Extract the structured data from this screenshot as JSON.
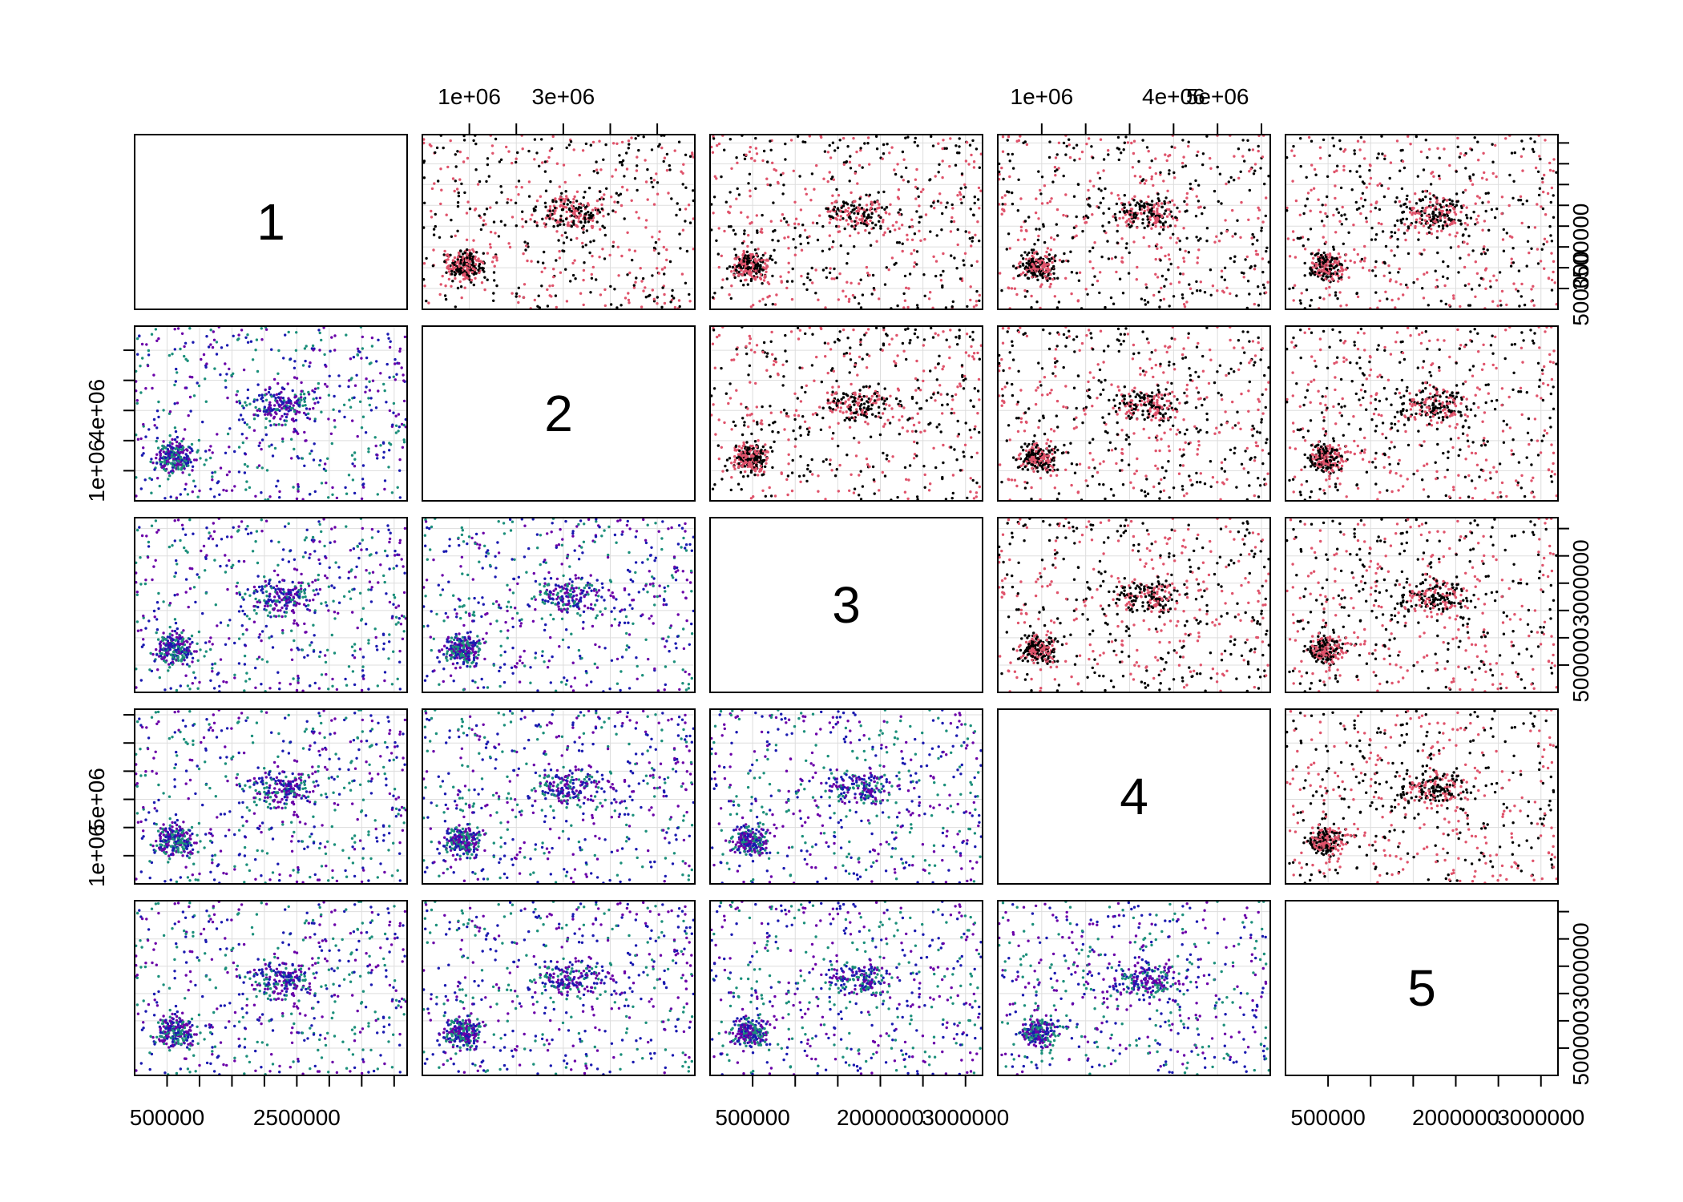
{
  "chart_data": {
    "type": "scatter",
    "subtype": "scatterplot-matrix",
    "title": "",
    "variables": [
      "1",
      "2",
      "3",
      "4",
      "5"
    ],
    "ranges": [
      [
        0,
        4200000
      ],
      [
        0,
        5800000
      ],
      [
        0,
        3200000
      ],
      [
        0,
        6200000
      ],
      [
        0,
        3200000
      ]
    ],
    "ticks": [
      {
        "values": [
          500000,
          1000000,
          1500000,
          2000000,
          2500000,
          3000000,
          3500000,
          4000000
        ],
        "labels": [
          "500000",
          "",
          "",
          "",
          "2500000",
          "",
          "",
          ""
        ]
      },
      {
        "values": [
          1000000,
          2000000,
          3000000,
          4000000,
          5000000
        ],
        "labels": [
          "1e+06",
          "",
          "3e+06",
          "",
          ""
        ]
      },
      {
        "values": [
          500000,
          1000000,
          1500000,
          2000000,
          2500000,
          3000000
        ],
        "labels": [
          "500000",
          "",
          "",
          "2000000",
          "",
          "3000000"
        ]
      },
      {
        "values": [
          1000000,
          2000000,
          3000000,
          4000000,
          5000000,
          6000000
        ],
        "labels": [
          "1e+06",
          "",
          "",
          "4e+06",
          "5e+06",
          ""
        ]
      },
      {
        "values": [
          500000,
          1000000,
          1500000,
          2000000,
          2500000,
          3000000
        ],
        "labels": [
          "500000",
          "",
          "",
          "2000000",
          "",
          "3000000"
        ]
      }
    ],
    "right_axis_labels": {
      "1": [
        "500000",
        "",
        "3500000"
      ],
      "3": [
        "500000",
        "",
        "",
        "3000000"
      ],
      "5": [
        "500000",
        "",
        "",
        "3000000"
      ]
    },
    "left_axis_labels": {
      "2": [
        "1e+06",
        "",
        "4e+06"
      ],
      "4": [
        "1e+06",
        "",
        "5e+06"
      ]
    },
    "upper_panel_colors": [
      "#000000",
      "#DF536B"
    ],
    "lower_panel_colors": [
      "#6a00a8",
      "#1a1ab0",
      "#1b8f7a"
    ],
    "grid": true,
    "points_per_panel": 900
  }
}
